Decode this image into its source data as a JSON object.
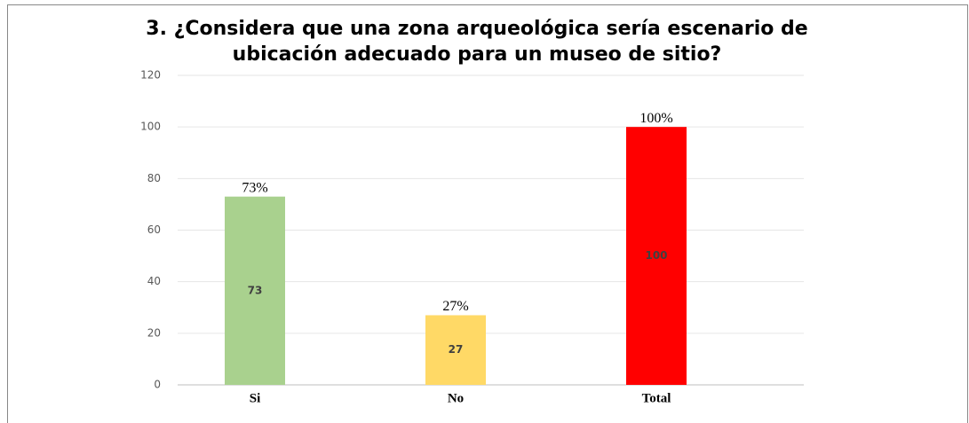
{
  "chart_data": {
    "type": "bar",
    "title": [
      "3. ¿Considera que una zona arqueológica sería escenario de",
      "ubicación adecuado para un museo de sitio?"
    ],
    "categories": [
      "Si",
      "No",
      "Total"
    ],
    "values": [
      73,
      27,
      100
    ],
    "value_labels": [
      "73%",
      "27%",
      "100%"
    ],
    "colors": [
      "#a9d18e",
      "#ffd966",
      "#ff0000"
    ],
    "ylim": [
      0,
      120
    ],
    "yticks": [
      0,
      20,
      40,
      60,
      80,
      100,
      120
    ],
    "grid": true
  }
}
